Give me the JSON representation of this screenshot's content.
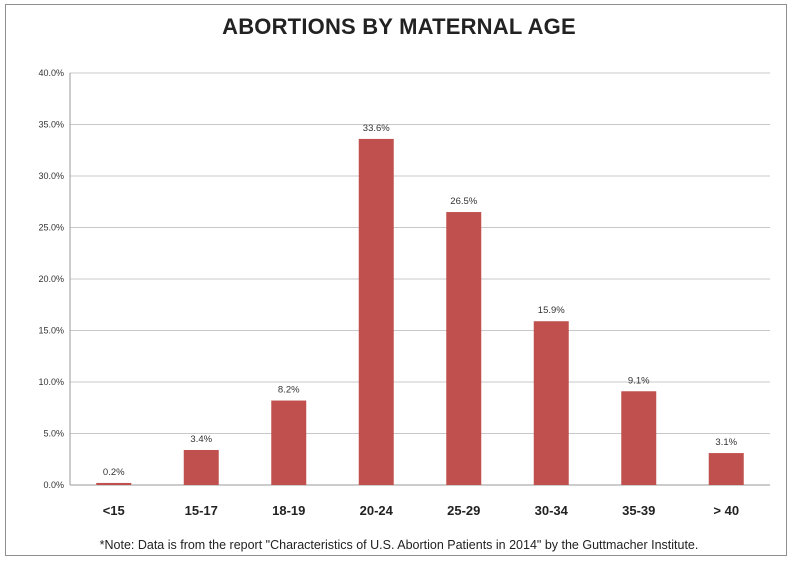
{
  "colors": {
    "bar": "#c0504d",
    "grid": "#c8c8c8",
    "axis": "#9a9a9a"
  },
  "note": "*Note: Data is from the report \"Characteristics of U.S. Abortion Patients in 2014\" by the Guttmacher Institute.",
  "chart_data": {
    "type": "bar",
    "title": "ABORTIONS BY MATERNAL AGE",
    "xlabel": "",
    "ylabel": "",
    "categories": [
      "<15",
      "15-17",
      "18-19",
      "20-24",
      "25-29",
      "30-34",
      "35-39",
      "> 40"
    ],
    "values": [
      0.2,
      3.4,
      8.2,
      33.6,
      26.5,
      15.9,
      9.1,
      3.1
    ],
    "data_labels": [
      "0.2%",
      "3.4%",
      "8.2%",
      "33.6%",
      "26.5%",
      "15.9%",
      "9.1%",
      "3.1%"
    ],
    "ylim": [
      0,
      40
    ],
    "yticks": [
      0,
      5,
      10,
      15,
      20,
      25,
      30,
      35,
      40
    ],
    "ytick_labels": [
      "0.0%",
      "5.0%",
      "10.0%",
      "15.0%",
      "20.0%",
      "25.0%",
      "30.0%",
      "35.0%",
      "40.0%"
    ],
    "grid": true,
    "legend": "none"
  }
}
